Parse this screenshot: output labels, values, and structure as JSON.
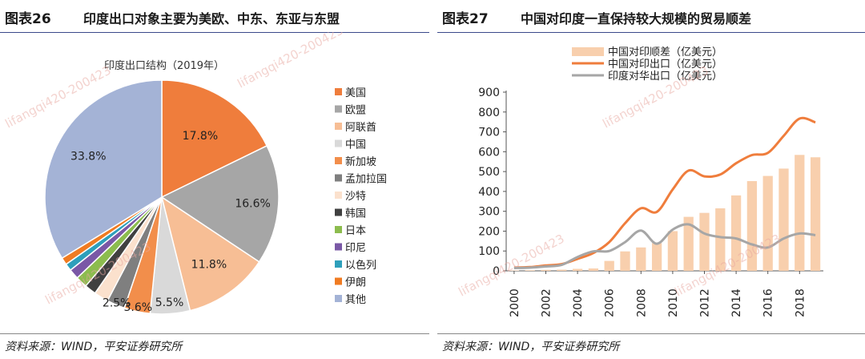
{
  "left": {
    "fig_number": "图表26",
    "fig_title": "印度出口对象主要为美欧、中东、东亚与东盟",
    "source": "资料来源：WIND，平安证券研究所"
  },
  "right": {
    "fig_number": "图表27",
    "fig_title": "中国对印度一直保持较大规模的贸易顺差",
    "source": "资料来源：WIND，平安证券研究所"
  },
  "watermark": "lifangqi420-200423",
  "chart_data": [
    {
      "type": "pie",
      "title": "印度出口结构（2019年）",
      "legend_position": "right",
      "slices": [
        {
          "label": "美国",
          "value": 17.8,
          "color": "#ef7d3c",
          "pct_label": "17.8%"
        },
        {
          "label": "欧盟",
          "value": 16.6,
          "color": "#a6a6a6",
          "pct_label": "16.6%"
        },
        {
          "label": "阿联酋",
          "value": 11.8,
          "color": "#f7be95",
          "pct_label": "11.8%"
        },
        {
          "label": "中国",
          "value": 5.5,
          "color": "#d9d9d9",
          "pct_label": "5.5%"
        },
        {
          "label": "新加坡",
          "value": 3.6,
          "color": "#f28e4b",
          "pct_label": "3.6%"
        },
        {
          "label": "孟加拉国",
          "value": 2.5,
          "color": "#7f7f7f",
          "pct_label": "2.5%"
        },
        {
          "label": "沙特",
          "value": 2.0,
          "color": "#fbe1cd",
          "pct_label": ""
        },
        {
          "label": "韩国",
          "value": 1.6,
          "color": "#404040",
          "pct_label": ""
        },
        {
          "label": "日本",
          "value": 1.6,
          "color": "#8cbc4e",
          "pct_label": ""
        },
        {
          "label": "印尼",
          "value": 1.4,
          "color": "#7a58a6",
          "pct_label": ""
        },
        {
          "label": "以色列",
          "value": 1.0,
          "color": "#2e9fbb",
          "pct_label": ""
        },
        {
          "label": "伊朗",
          "value": 1.0,
          "color": "#f07b22",
          "pct_label": ""
        },
        {
          "label": "其他",
          "value": 33.8,
          "color": "#a4b3d6",
          "pct_label": "33.8%"
        }
      ]
    },
    {
      "type": "bar+line",
      "title": "",
      "xlabel": "",
      "ylabel": "",
      "ylim": [
        0,
        900
      ],
      "yticks": [
        0,
        100,
        200,
        300,
        400,
        500,
        600,
        700,
        800,
        900
      ],
      "xticks": [
        "2000",
        "2002",
        "2004",
        "2006",
        "2008",
        "2010",
        "2012",
        "2014",
        "2016",
        "2018"
      ],
      "x": [
        2000,
        2001,
        2002,
        2003,
        2004,
        2005,
        2006,
        2007,
        2008,
        2009,
        2010,
        2011,
        2012,
        2013,
        2014,
        2015,
        2016,
        2017,
        2018,
        2019
      ],
      "legend_position": "top",
      "series": [
        {
          "name": "中国对印顺差（亿美元）",
          "kind": "bar",
          "color": "#f8cfad",
          "values": [
            2,
            3,
            5,
            6,
            10,
            12,
            50,
            98,
            118,
            140,
            200,
            272,
            292,
            315,
            380,
            452,
            478,
            515,
            584,
            572
          ]
        },
        {
          "name": "中国对印出口（亿美元）",
          "kind": "line",
          "color": "#ef7d3c",
          "values": [
            16,
            19,
            27,
            34,
            60,
            90,
            145,
            240,
            315,
            297,
            410,
            505,
            476,
            485,
            542,
            583,
            594,
            680,
            767,
            748
          ]
        },
        {
          "name": "印度对华出口（亿美元）",
          "kind": "line",
          "color": "#a6a6a6",
          "values": [
            14,
            16,
            22,
            30,
            70,
            98,
            100,
            145,
            203,
            137,
            208,
            234,
            188,
            170,
            163,
            133,
            118,
            163,
            188,
            180
          ]
        }
      ]
    }
  ]
}
